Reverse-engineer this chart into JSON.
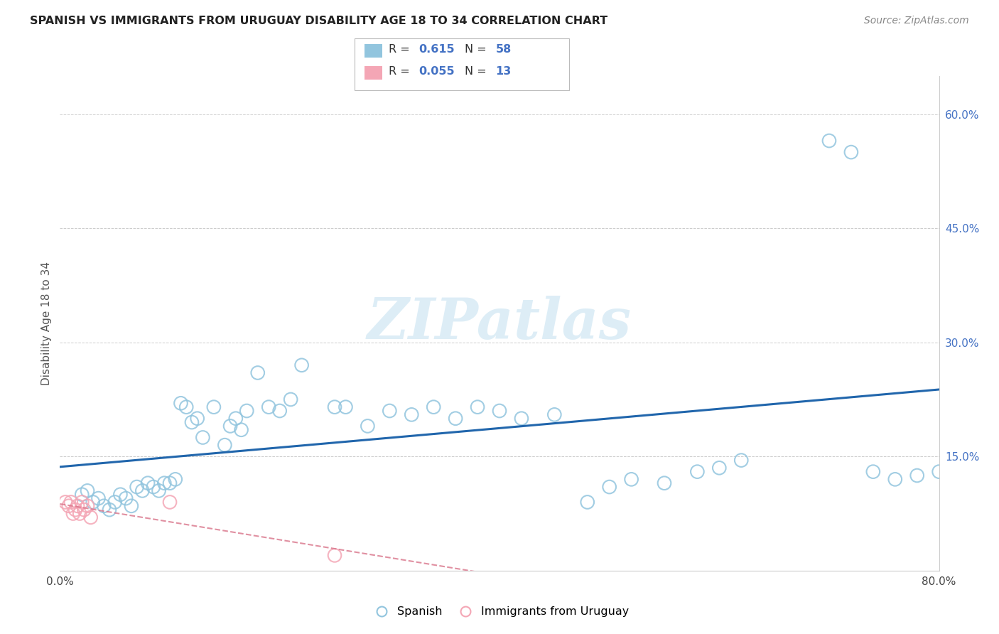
{
  "title": "SPANISH VS IMMIGRANTS FROM URUGUAY DISABILITY AGE 18 TO 34 CORRELATION CHART",
  "source": "Source: ZipAtlas.com",
  "ylabel": "Disability Age 18 to 34",
  "xlim": [
    0.0,
    0.8
  ],
  "ylim": [
    0.0,
    0.65
  ],
  "xtick_positions": [
    0.0,
    0.1,
    0.2,
    0.3,
    0.4,
    0.5,
    0.6,
    0.7,
    0.8
  ],
  "xticklabels": [
    "0.0%",
    "",
    "",
    "",
    "",
    "",
    "",
    "",
    "80.0%"
  ],
  "ytick_positions": [
    0.0,
    0.15,
    0.3,
    0.45,
    0.6
  ],
  "yticklabels_right": [
    "",
    "15.0%",
    "30.0%",
    "45.0%",
    "60.0%"
  ],
  "watermark": "ZIPatlas",
  "legend_R1": "0.615",
  "legend_N1": "58",
  "legend_R2": "0.055",
  "legend_N2": "13",
  "blue_color": "#92c5de",
  "pink_color": "#f4a6b5",
  "line_blue": "#2166ac",
  "line_pink": "#d9748a",
  "spanish_x": [
    0.02,
    0.025,
    0.03,
    0.035,
    0.04,
    0.045,
    0.05,
    0.055,
    0.06,
    0.065,
    0.07,
    0.075,
    0.08,
    0.085,
    0.09,
    0.095,
    0.1,
    0.105,
    0.11,
    0.115,
    0.12,
    0.125,
    0.13,
    0.14,
    0.15,
    0.155,
    0.16,
    0.165,
    0.17,
    0.18,
    0.19,
    0.2,
    0.21,
    0.22,
    0.25,
    0.26,
    0.28,
    0.3,
    0.32,
    0.34,
    0.36,
    0.38,
    0.4,
    0.42,
    0.45,
    0.48,
    0.5,
    0.52,
    0.55,
    0.58,
    0.6,
    0.62,
    0.7,
    0.72,
    0.74,
    0.76,
    0.78,
    0.8
  ],
  "spanish_y": [
    0.1,
    0.105,
    0.09,
    0.095,
    0.085,
    0.08,
    0.09,
    0.1,
    0.095,
    0.085,
    0.11,
    0.105,
    0.115,
    0.11,
    0.105,
    0.115,
    0.115,
    0.12,
    0.22,
    0.215,
    0.195,
    0.2,
    0.175,
    0.215,
    0.165,
    0.19,
    0.2,
    0.185,
    0.21,
    0.26,
    0.215,
    0.21,
    0.225,
    0.27,
    0.215,
    0.215,
    0.19,
    0.21,
    0.205,
    0.215,
    0.2,
    0.215,
    0.21,
    0.2,
    0.205,
    0.09,
    0.11,
    0.12,
    0.115,
    0.13,
    0.135,
    0.145,
    0.565,
    0.55,
    0.13,
    0.12,
    0.125,
    0.13
  ],
  "uruguay_x": [
    0.005,
    0.008,
    0.01,
    0.012,
    0.014,
    0.016,
    0.018,
    0.02,
    0.022,
    0.025,
    0.028,
    0.1,
    0.25
  ],
  "uruguay_y": [
    0.09,
    0.085,
    0.09,
    0.075,
    0.08,
    0.085,
    0.075,
    0.09,
    0.08,
    0.085,
    0.07,
    0.09,
    0.02
  ],
  "background_color": "#ffffff",
  "grid_color": "#cccccc"
}
